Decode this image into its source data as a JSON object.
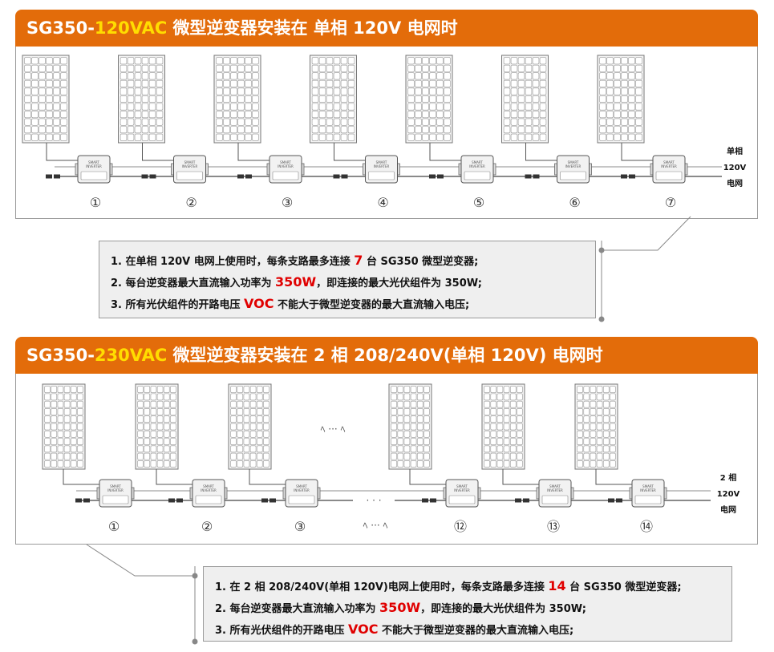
{
  "section1": {
    "title_prefix": "SG350-",
    "title_highlight": "120VAC",
    "title_suffix": " 微型逆变器安装在 单相 120V 电网时",
    "grid_label": [
      "单相",
      "120V",
      "电网"
    ],
    "units": [
      "①",
      "②",
      "③",
      "④",
      "⑤",
      "⑥",
      "⑦"
    ],
    "inverter_label": [
      "SMART",
      "INVERTER"
    ],
    "notes": [
      {
        "pre": "1. 在单相 120V 电网上使用时，每条支路最多连接 ",
        "value": "7",
        "post": " 台 SG350 微型逆变器;"
      },
      {
        "pre": "2. 每台逆变器最大直流输入功率为 ",
        "value": "350W",
        "post": "，即连接的最大光伏组件为 350W;"
      },
      {
        "pre": "3. 所有光伏组件的开路电压 ",
        "value": "VOC",
        "post": " 不能大于微型逆变器的最大直流输入电压;"
      }
    ]
  },
  "section2": {
    "title_prefix": "SG350-",
    "title_highlight": "230VAC",
    "title_suffix": " 微型逆变器安装在 2 相 208/240V(单相 120V) 电网时",
    "grid_label": [
      "2 相",
      "120V",
      "电网"
    ],
    "units": [
      "①",
      "②",
      "③",
      "⑫",
      "⑬",
      "⑭"
    ],
    "ellipsis": "ﾍ ··· ﾍ",
    "inverter_label": [
      "SMART",
      "INVERTER"
    ],
    "notes": [
      {
        "pre": "1. 在 2 相 208/240V(单相 120V)电网上使用时，每条支路最多连接 ",
        "value": "14",
        "post": " 台 SG350 微型逆变器;"
      },
      {
        "pre": "2. 每台逆变器最大直流输入功率为 ",
        "value": "350W",
        "post": "，即连接的最大光伏组件为 350W;"
      },
      {
        "pre": "3. 所有光伏组件的开路电压 ",
        "value": "VOC",
        "post": " 不能大于微型逆变器的最大直流输入电压;"
      }
    ]
  },
  "colors": {
    "header": "#e36c0a",
    "highlight": "#ffdd00",
    "emphasis": "#e00000"
  }
}
